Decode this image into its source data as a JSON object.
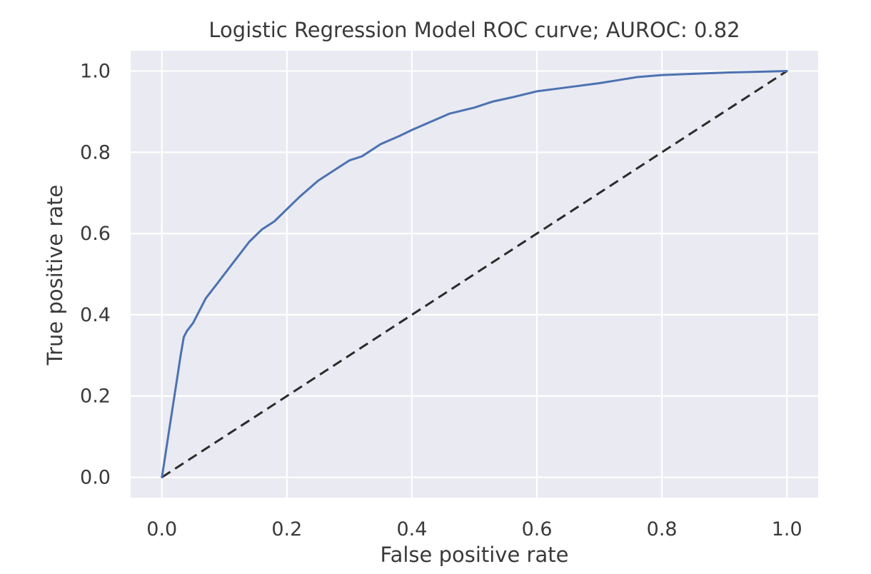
{
  "chart_data": {
    "type": "line",
    "title": "Logistic Regression Model ROC curve; AUROC: 0.82",
    "xlabel": "False positive rate",
    "ylabel": "True positive rate",
    "xlim": [
      -0.05,
      1.05
    ],
    "ylim": [
      -0.05,
      1.05
    ],
    "x_ticks": [
      0.0,
      0.2,
      0.4,
      0.6,
      0.8,
      1.0
    ],
    "y_ticks": [
      0.0,
      0.2,
      0.4,
      0.6,
      0.8,
      1.0
    ],
    "x_tick_labels": [
      "0.0",
      "0.2",
      "0.4",
      "0.6",
      "0.8",
      "1.0"
    ],
    "y_tick_labels": [
      "0.0",
      "0.2",
      "0.4",
      "0.6",
      "0.8",
      "1.0"
    ],
    "grid": true,
    "background": "#eaeaf2",
    "series": [
      {
        "style": "solid",
        "color": "#4c72b0",
        "x": [
          0.0,
          0.005,
          0.01,
          0.015,
          0.02,
          0.025,
          0.03,
          0.035,
          0.04,
          0.05,
          0.06,
          0.07,
          0.08,
          0.09,
          0.1,
          0.12,
          0.14,
          0.16,
          0.18,
          0.2,
          0.22,
          0.25,
          0.28,
          0.3,
          0.32,
          0.35,
          0.38,
          0.4,
          0.43,
          0.46,
          0.5,
          0.53,
          0.56,
          0.6,
          0.65,
          0.7,
          0.72,
          0.76,
          0.8,
          0.85,
          0.9,
          0.95,
          1.0
        ],
        "y": [
          0.0,
          0.05,
          0.1,
          0.15,
          0.2,
          0.25,
          0.3,
          0.345,
          0.36,
          0.38,
          0.41,
          0.44,
          0.46,
          0.48,
          0.5,
          0.54,
          0.58,
          0.61,
          0.63,
          0.66,
          0.69,
          0.73,
          0.76,
          0.78,
          0.79,
          0.82,
          0.84,
          0.855,
          0.875,
          0.895,
          0.91,
          0.925,
          0.935,
          0.95,
          0.96,
          0.97,
          0.975,
          0.985,
          0.99,
          0.993,
          0.996,
          0.998,
          1.0
        ]
      },
      {
        "style": "dashed",
        "color": "#2b2b2b",
        "x": [
          0.0,
          1.0
        ],
        "y": [
          0.0,
          1.0
        ]
      }
    ]
  }
}
